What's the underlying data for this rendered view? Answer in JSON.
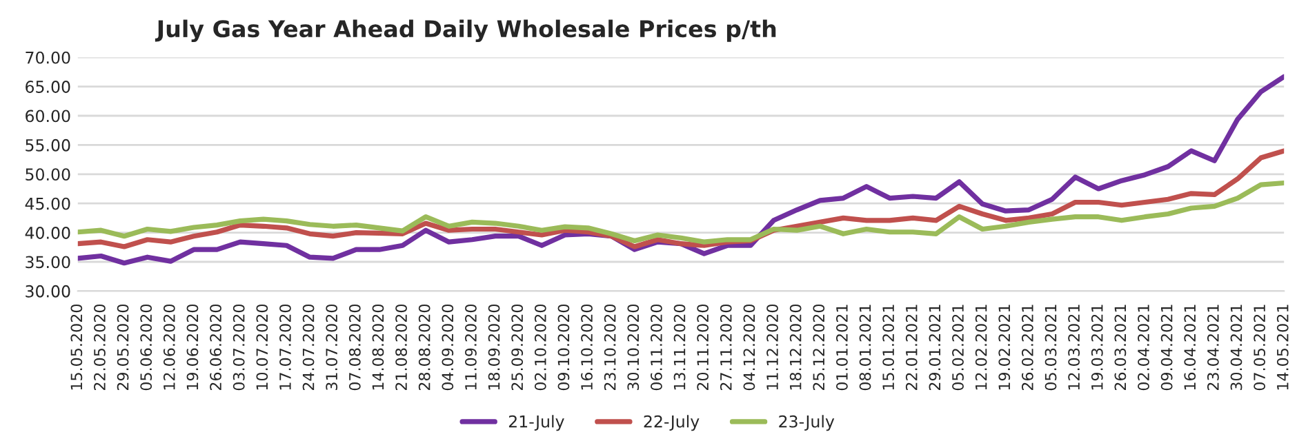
{
  "chart_data": {
    "type": "line",
    "title": "July Gas Year Ahead Daily Wholesale Prices p/th",
    "x": [
      "2020-05-15",
      "2020-05-22",
      "2020-05-29",
      "2020-06-05",
      "2020-06-12",
      "2020-06-19",
      "2020-06-26",
      "2020-07-03",
      "2020-07-10",
      "2020-07-17",
      "2020-07-24",
      "2020-07-31",
      "2020-08-07",
      "2020-08-14",
      "2020-08-21",
      "2020-08-28",
      "2020-09-04",
      "2020-09-11",
      "2020-09-18",
      "2020-09-25",
      "2020-10-02",
      "2020-10-09",
      "2020-10-16",
      "2020-10-23",
      "2020-10-30",
      "2020-11-06",
      "2020-11-13",
      "2020-11-20",
      "2020-11-27",
      "2020-12-04",
      "2020-12-11",
      "2020-12-18",
      "2020-12-25",
      "2021-01-01",
      "2021-01-08",
      "2021-01-15",
      "2021-01-22",
      "2021-01-29",
      "2021-02-05",
      "2021-02-12",
      "2021-02-19",
      "2021-02-26",
      "2021-03-05",
      "2021-03-12",
      "2021-03-19",
      "2021-03-26",
      "2021-04-02",
      "2021-04-09",
      "2021-04-16",
      "2021-04-23",
      "2021-04-30",
      "2021-05-07",
      "2021-05-14"
    ],
    "series": [
      {
        "name": "21-July",
        "color": "#7030a0",
        "values": [
          35.6,
          36.0,
          34.8,
          35.8,
          35.1,
          37.1,
          37.1,
          38.4,
          38.1,
          37.8,
          35.8,
          35.6,
          37.1,
          37.1,
          37.8,
          40.4,
          38.4,
          38.8,
          39.4,
          39.4,
          37.8,
          39.6,
          39.8,
          39.4,
          37.1,
          38.4,
          38.1,
          36.4,
          37.8,
          37.8,
          42.1,
          43.9,
          45.5,
          45.9,
          47.9,
          45.9,
          46.2,
          45.9,
          48.7,
          44.9,
          43.7,
          43.9,
          45.7,
          49.5,
          47.5,
          48.9,
          49.9,
          51.3,
          54.0,
          52.3,
          59.4,
          64.1,
          66.7
        ]
      },
      {
        "name": "22-July",
        "color": "#c0504d",
        "values": [
          38.1,
          38.4,
          37.6,
          38.8,
          38.4,
          39.4,
          40.1,
          41.3,
          41.1,
          40.8,
          39.8,
          39.4,
          40.0,
          39.9,
          39.8,
          41.6,
          40.4,
          40.6,
          40.6,
          40.1,
          39.6,
          40.4,
          40.1,
          39.4,
          37.6,
          38.8,
          38.1,
          37.8,
          38.4,
          38.6,
          40.4,
          41.1,
          41.8,
          42.5,
          42.1,
          42.1,
          42.5,
          42.1,
          44.5,
          43.2,
          42.1,
          42.5,
          43.2,
          45.2,
          45.2,
          44.7,
          45.2,
          45.7,
          46.7,
          46.5,
          49.2,
          52.8,
          54.0
        ]
      },
      {
        "name": "23-July",
        "color": "#9bbb59",
        "values": [
          40.1,
          40.4,
          39.4,
          40.6,
          40.2,
          40.9,
          41.3,
          42.0,
          42.3,
          42.0,
          41.4,
          41.1,
          41.3,
          40.8,
          40.3,
          42.7,
          41.1,
          41.8,
          41.6,
          41.1,
          40.4,
          41.0,
          40.8,
          39.8,
          38.6,
          39.6,
          39.1,
          38.4,
          38.8,
          38.8,
          40.6,
          40.4,
          41.1,
          39.8,
          40.6,
          40.1,
          40.1,
          39.8,
          42.7,
          40.6,
          41.1,
          41.8,
          42.3,
          42.7,
          42.7,
          42.1,
          42.7,
          43.2,
          44.2,
          44.5,
          45.9,
          48.2,
          48.5
        ]
      }
    ],
    "xlim": [
      "2020-05-15",
      "2021-05-14"
    ],
    "xticks": [
      {
        "value": "2020-05-15",
        "label": "15.05.2020"
      },
      {
        "value": "2020-05-22",
        "label": "22.05.2020"
      },
      {
        "value": "2020-05-29",
        "label": "29.05.2020"
      },
      {
        "value": "2020-06-05",
        "label": "05.06.2020"
      },
      {
        "value": "2020-06-12",
        "label": "12.06.2020"
      },
      {
        "value": "2020-06-19",
        "label": "19.06.2020"
      },
      {
        "value": "2020-06-26",
        "label": "26.06.2020"
      },
      {
        "value": "2020-07-03",
        "label": "03.07.2020"
      },
      {
        "value": "2020-07-10",
        "label": "10.07.2020"
      },
      {
        "value": "2020-07-17",
        "label": "17.07.2020"
      },
      {
        "value": "2020-07-24",
        "label": "24.07.2020"
      },
      {
        "value": "2020-07-31",
        "label": "31.07.2020"
      },
      {
        "value": "2020-08-07",
        "label": "07.08.2020"
      },
      {
        "value": "2020-08-14",
        "label": "14.08.2020"
      },
      {
        "value": "2020-08-21",
        "label": "21.08.2020"
      },
      {
        "value": "2020-08-28",
        "label": "28.08.2020"
      },
      {
        "value": "2020-09-04",
        "label": "04.09.2020"
      },
      {
        "value": "2020-09-11",
        "label": "11.09.2020"
      },
      {
        "value": "2020-09-18",
        "label": "18.09.2020"
      },
      {
        "value": "2020-09-25",
        "label": "25.09.2020"
      },
      {
        "value": "2020-10-02",
        "label": "02.10.2020"
      },
      {
        "value": "2020-10-09",
        "label": "09.10.2020"
      },
      {
        "value": "2020-10-16",
        "label": "16.10.2020"
      },
      {
        "value": "2020-10-23",
        "label": "23.10.2020"
      },
      {
        "value": "2020-10-30",
        "label": "30.10.2020"
      },
      {
        "value": "2020-11-06",
        "label": "06.11.2020"
      },
      {
        "value": "2020-11-13",
        "label": "13.11.2020"
      },
      {
        "value": "2020-11-20",
        "label": "20.11.2020"
      },
      {
        "value": "2020-11-27",
        "label": "27.11.2020"
      },
      {
        "value": "2020-12-04",
        "label": "04.12.2020"
      },
      {
        "value": "2020-12-11",
        "label": "11.12.2020"
      },
      {
        "value": "2020-12-18",
        "label": "18.12.2020"
      },
      {
        "value": "2020-12-25",
        "label": "25.12.2020"
      },
      {
        "value": "2021-01-01",
        "label": "01.01.2021"
      },
      {
        "value": "2021-01-08",
        "label": "08.01.2021"
      },
      {
        "value": "2021-01-15",
        "label": "15.01.2021"
      },
      {
        "value": "2021-01-22",
        "label": "22.01.2021"
      },
      {
        "value": "2021-01-29",
        "label": "29.01.2021"
      },
      {
        "value": "2021-02-05",
        "label": "05.02.2021"
      },
      {
        "value": "2021-02-12",
        "label": "12.02.2021"
      },
      {
        "value": "2021-02-19",
        "label": "19.02.2021"
      },
      {
        "value": "2021-02-26",
        "label": "26.02.2021"
      },
      {
        "value": "2021-03-05",
        "label": "05.03.2021"
      },
      {
        "value": "2021-03-12",
        "label": "12.03.2021"
      },
      {
        "value": "2021-03-19",
        "label": "19.03.2021"
      },
      {
        "value": "2021-03-26",
        "label": "26.03.2021"
      },
      {
        "value": "2021-04-02",
        "label": "02.04.2021"
      },
      {
        "value": "2021-04-09",
        "label": "09.04.2021"
      },
      {
        "value": "2021-04-16",
        "label": "16.04.2021"
      },
      {
        "value": "2021-04-23",
        "label": "23.04.2021"
      },
      {
        "value": "2021-04-30",
        "label": "30.04.2021"
      },
      {
        "value": "2021-05-07",
        "label": "07.05.2021"
      },
      {
        "value": "2021-05-14",
        "label": "14.05.2021"
      }
    ],
    "ylim": [
      30,
      70
    ],
    "yticks": [
      {
        "value": 30,
        "label": "30.00"
      },
      {
        "value": 35,
        "label": "35.00"
      },
      {
        "value": 40,
        "label": "40.00"
      },
      {
        "value": 45,
        "label": "45.00"
      },
      {
        "value": 50,
        "label": "50.00"
      },
      {
        "value": 55,
        "label": "55.00"
      },
      {
        "value": 60,
        "label": "60.00"
      },
      {
        "value": 65,
        "label": "65.00"
      },
      {
        "value": 70,
        "label": "70.00"
      }
    ],
    "grid": "y",
    "legend": "bottom",
    "marker": "none",
    "line_style": "solid"
  }
}
